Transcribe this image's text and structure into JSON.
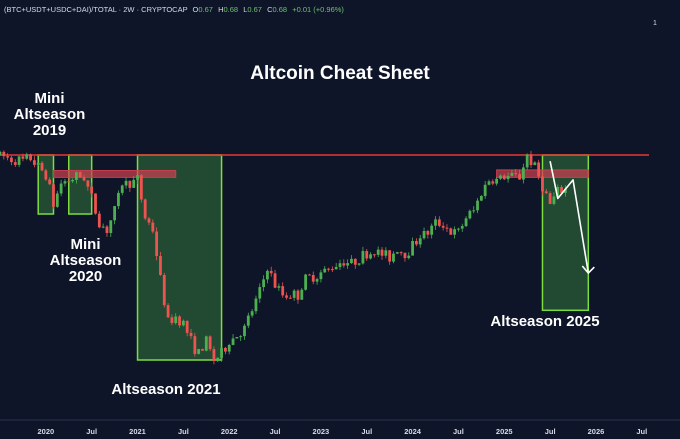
{
  "header": {
    "symbol": "(BTC+USDT+USDC+DAI)/TOTAL · 2W · CRYPTOCAP",
    "o_label": "O",
    "o_value": "0.67",
    "h_label": "H",
    "h_value": "0.68",
    "l_label": "L",
    "l_value": "0.67",
    "c_label": "C",
    "c_value": "0.68",
    "change": "+0.01 (+0.96%)"
  },
  "page_indicator": "1",
  "chart_data": {
    "type": "candlestick",
    "title": "Altcoin Cheat Sheet",
    "x_ticks": [
      "2020",
      "Jul",
      "2021",
      "Jul",
      "2022",
      "Jul",
      "2023",
      "Jul",
      "2024",
      "Jul",
      "2025",
      "Jul",
      "2026",
      "Jul"
    ],
    "x_range": [
      "2019-07",
      "2026-12"
    ],
    "price_path": [
      [
        "2019-07",
        0.7
      ],
      [
        "2019-08",
        0.695
      ],
      [
        "2019-10",
        0.69
      ],
      [
        "2019-11",
        0.695
      ],
      [
        "2019-12",
        0.68
      ],
      [
        "2020-01",
        0.67
      ],
      [
        "2020-02",
        0.62
      ],
      [
        "2020-03",
        0.655
      ],
      [
        "2020-04",
        0.66
      ],
      [
        "2020-05",
        0.665
      ],
      [
        "2020-06",
        0.665
      ],
      [
        "2020-07",
        0.63
      ],
      [
        "2020-08",
        0.59
      ],
      [
        "2020-09",
        0.58
      ],
      [
        "2020-10",
        0.61
      ],
      [
        "2020-11",
        0.655
      ],
      [
        "2020-12",
        0.655
      ],
      [
        "2021-01",
        0.66
      ],
      [
        "2021-02",
        0.6
      ],
      [
        "2021-03",
        0.58
      ],
      [
        "2021-04",
        0.5
      ],
      [
        "2021-05",
        0.43
      ],
      [
        "2021-06",
        0.44
      ],
      [
        "2021-07",
        0.43
      ],
      [
        "2021-08",
        0.4
      ],
      [
        "2021-09",
        0.38
      ],
      [
        "2021-10",
        0.4
      ],
      [
        "2021-11",
        0.37
      ],
      [
        "2021-12",
        0.38
      ],
      [
        "2022-01",
        0.4
      ],
      [
        "2022-02",
        0.41
      ],
      [
        "2022-03",
        0.42
      ],
      [
        "2022-05",
        0.48
      ],
      [
        "2022-06",
        0.52
      ],
      [
        "2022-07",
        0.49
      ],
      [
        "2022-08",
        0.475
      ],
      [
        "2022-09",
        0.475
      ],
      [
        "2022-10",
        0.475
      ],
      [
        "2022-11",
        0.5
      ],
      [
        "2022-12",
        0.505
      ],
      [
        "2023-01",
        0.51
      ],
      [
        "2023-02",
        0.515
      ],
      [
        "2023-03",
        0.525
      ],
      [
        "2023-04",
        0.53
      ],
      [
        "2023-05",
        0.525
      ],
      [
        "2023-06",
        0.535
      ],
      [
        "2023-07",
        0.54
      ],
      [
        "2023-08",
        0.545
      ],
      [
        "2023-09",
        0.54
      ],
      [
        "2023-10",
        0.535
      ],
      [
        "2023-11",
        0.55
      ],
      [
        "2023-12",
        0.54
      ],
      [
        "2024-01",
        0.555
      ],
      [
        "2024-02",
        0.57
      ],
      [
        "2024-03",
        0.575
      ],
      [
        "2024-04",
        0.59
      ],
      [
        "2024-05",
        0.59
      ],
      [
        "2024-06",
        0.575
      ],
      [
        "2024-07",
        0.575
      ],
      [
        "2024-08",
        0.6
      ],
      [
        "2024-09",
        0.61
      ],
      [
        "2024-10",
        0.64
      ],
      [
        "2024-11",
        0.66
      ],
      [
        "2024-12",
        0.66
      ],
      [
        "2025-01",
        0.665
      ],
      [
        "2025-02",
        0.665
      ],
      [
        "2025-03",
        0.665
      ],
      [
        "2025-04",
        0.7
      ],
      [
        "2025-05",
        0.68
      ],
      [
        "2025-06",
        0.65
      ],
      [
        "2025-07",
        0.62
      ],
      [
        "2025-08",
        0.64
      ],
      [
        "2025-09",
        0.645
      ]
    ],
    "resistance_level": 0.7,
    "projection": [
      [
        "2025-07",
        0.69
      ],
      [
        "2025-08",
        0.63
      ],
      [
        "2025-10",
        0.66
      ],
      [
        "2025-12",
        0.51
      ]
    ]
  },
  "annotations": [
    {
      "lines": [
        "Mini",
        "Altseason",
        "2019"
      ]
    },
    {
      "lines": [
        "Mini",
        "Altseason",
        "2020"
      ]
    },
    {
      "lines": [
        "Altseason 2021"
      ]
    },
    {
      "lines": [
        "Altseason 2025"
      ]
    }
  ],
  "colors": {
    "background": "#0e1529",
    "up": "#4caf50",
    "down": "#ef5350",
    "resistance": "#e53935",
    "zone_fill": "#2e6b3a",
    "zone_border": "#7ddc3f",
    "band_fill": "#c8404f",
    "arrow": "#ffffff"
  }
}
